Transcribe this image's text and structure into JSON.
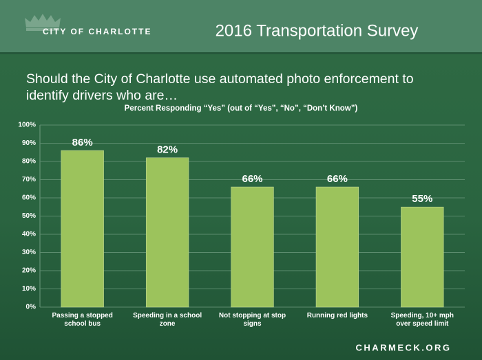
{
  "header": {
    "logo_text": "CITY OF CHARLOTTE",
    "title": "2016 Transportation Survey"
  },
  "chart_data": {
    "type": "bar",
    "title": "Should the City of Charlotte use automated photo enforcement to identify drivers who are…",
    "subtitle": "Percent Responding “Yes” (out of “Yes”, “No”, “Don’t Know”)",
    "categories": [
      "Passing a stopped school bus",
      "Speeding in a school zone",
      "Not stopping at stop signs",
      "Running red lights",
      "Speeding, 10+ mph over speed limit"
    ],
    "values": [
      86,
      82,
      66,
      66,
      55
    ],
    "value_labels": [
      "86%",
      "82%",
      "66%",
      "66%",
      "55%"
    ],
    "color": "#9cc35c",
    "ylim": [
      0,
      100
    ],
    "yticks": [
      {
        "value": 0,
        "label": "0%"
      },
      {
        "value": 10,
        "label": "10%"
      },
      {
        "value": 20,
        "label": "20%"
      },
      {
        "value": 30,
        "label": "30%"
      },
      {
        "value": 40,
        "label": "40%"
      },
      {
        "value": 50,
        "label": "50%"
      },
      {
        "value": 60,
        "label": "60%"
      },
      {
        "value": 70,
        "label": "70%"
      },
      {
        "value": 80,
        "label": "80%"
      },
      {
        "value": 90,
        "label": "90%"
      },
      {
        "value": 100,
        "label": "100%"
      }
    ],
    "grid": true
  },
  "footer": "CHARMECK.ORG"
}
